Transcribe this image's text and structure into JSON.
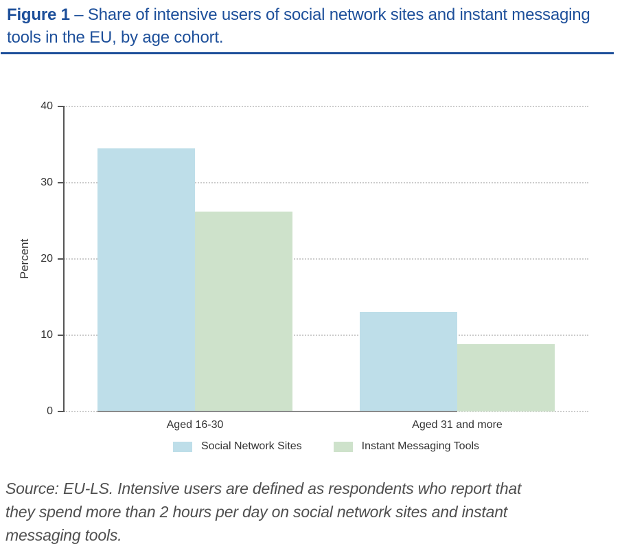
{
  "figure": {
    "label": "Figure 1",
    "caption": " – Share of intensive users of social network sites and instant messaging tools in the EU, by age cohort."
  },
  "chart_data": {
    "type": "bar",
    "title": "",
    "categories": [
      "Aged 16-30",
      "Aged 31 and more"
    ],
    "series": [
      {
        "name": "Social Network Sites",
        "color": "#bedee9",
        "values": [
          34.5,
          13.1
        ]
      },
      {
        "name": "Instant Messaging Tools",
        "color": "#cee2cb",
        "values": [
          26.2,
          8.8
        ]
      }
    ],
    "xlabel": "",
    "ylabel": "Percent",
    "ylim": [
      0,
      40
    ],
    "yticks": [
      0,
      10,
      20,
      30,
      40
    ],
    "grid": "horizontal-dotted",
    "legend_position": "bottom-center"
  },
  "source_note": {
    "lines": [
      "Source: EU-LS.  Intensive users are defined as respondents who report that",
      "they spend more than 2 hours per day on social network sites and instant",
      "messaging tools."
    ]
  },
  "colors": {
    "title_blue": "#1d4f9a",
    "bar_blue": "#bedee9",
    "bar_green": "#cee2cb",
    "gridline": "#cccccc",
    "axis": "#555555",
    "baseline": "#8a8a8a",
    "tick_text": "#333333",
    "note_text": "#4f4f4f"
  }
}
